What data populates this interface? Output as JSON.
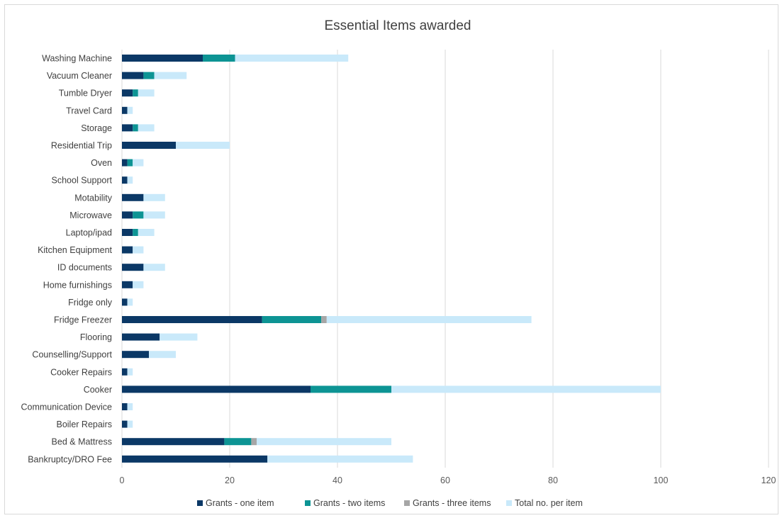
{
  "chart_data": {
    "type": "bar",
    "orientation": "horizontal",
    "stacked": true,
    "title": "Essential Items awarded",
    "xlabel": "",
    "ylabel": "",
    "xlim": [
      0,
      120
    ],
    "xticks": [
      0,
      20,
      40,
      60,
      80,
      100,
      120
    ],
    "grid": true,
    "legend_position": "bottom",
    "categories": [
      "Washing Machine",
      "Vacuum Cleaner",
      "Tumble Dryer",
      "Travel Card",
      "Storage",
      "Residential Trip",
      "Oven",
      "School Support",
      "Motability",
      "Microwave",
      "Laptop/ipad",
      "Kitchen Equipment",
      "ID documents",
      "Home furnishings",
      "Fridge only",
      "Fridge Freezer",
      "Flooring",
      "Counselling/Support",
      "Cooker Repairs",
      "Cooker",
      "Communication Device",
      "Boiler Repairs",
      "Bed & Mattress",
      "Bankruptcy/DRO Fee"
    ],
    "series": [
      {
        "name": "Grants - one item",
        "color": "#0b3866",
        "values": [
          15,
          4,
          2,
          1,
          2,
          10,
          1,
          1,
          4,
          2,
          2,
          2,
          4,
          2,
          1,
          26,
          7,
          5,
          1,
          35,
          1,
          1,
          19,
          27
        ]
      },
      {
        "name": "Grants - two items",
        "color": "#0d9494",
        "values": [
          6,
          2,
          1,
          0,
          1,
          0,
          1,
          0,
          0,
          2,
          1,
          0,
          0,
          0,
          0,
          11,
          0,
          0,
          0,
          15,
          0,
          0,
          5,
          0
        ]
      },
      {
        "name": "Grants - three items",
        "color": "#a6a6a6",
        "values": [
          0,
          0,
          0,
          0,
          0,
          0,
          0,
          0,
          0,
          0,
          0,
          0,
          0,
          0,
          0,
          1,
          0,
          0,
          0,
          0,
          0,
          0,
          1,
          0
        ]
      },
      {
        "name": "Total no. per item",
        "color": "#c9e9fa",
        "values": [
          21,
          6,
          3,
          1,
          3,
          10,
          2,
          1,
          4,
          4,
          3,
          2,
          4,
          2,
          1,
          38,
          7,
          5,
          1,
          50,
          1,
          1,
          25,
          27
        ]
      }
    ]
  }
}
